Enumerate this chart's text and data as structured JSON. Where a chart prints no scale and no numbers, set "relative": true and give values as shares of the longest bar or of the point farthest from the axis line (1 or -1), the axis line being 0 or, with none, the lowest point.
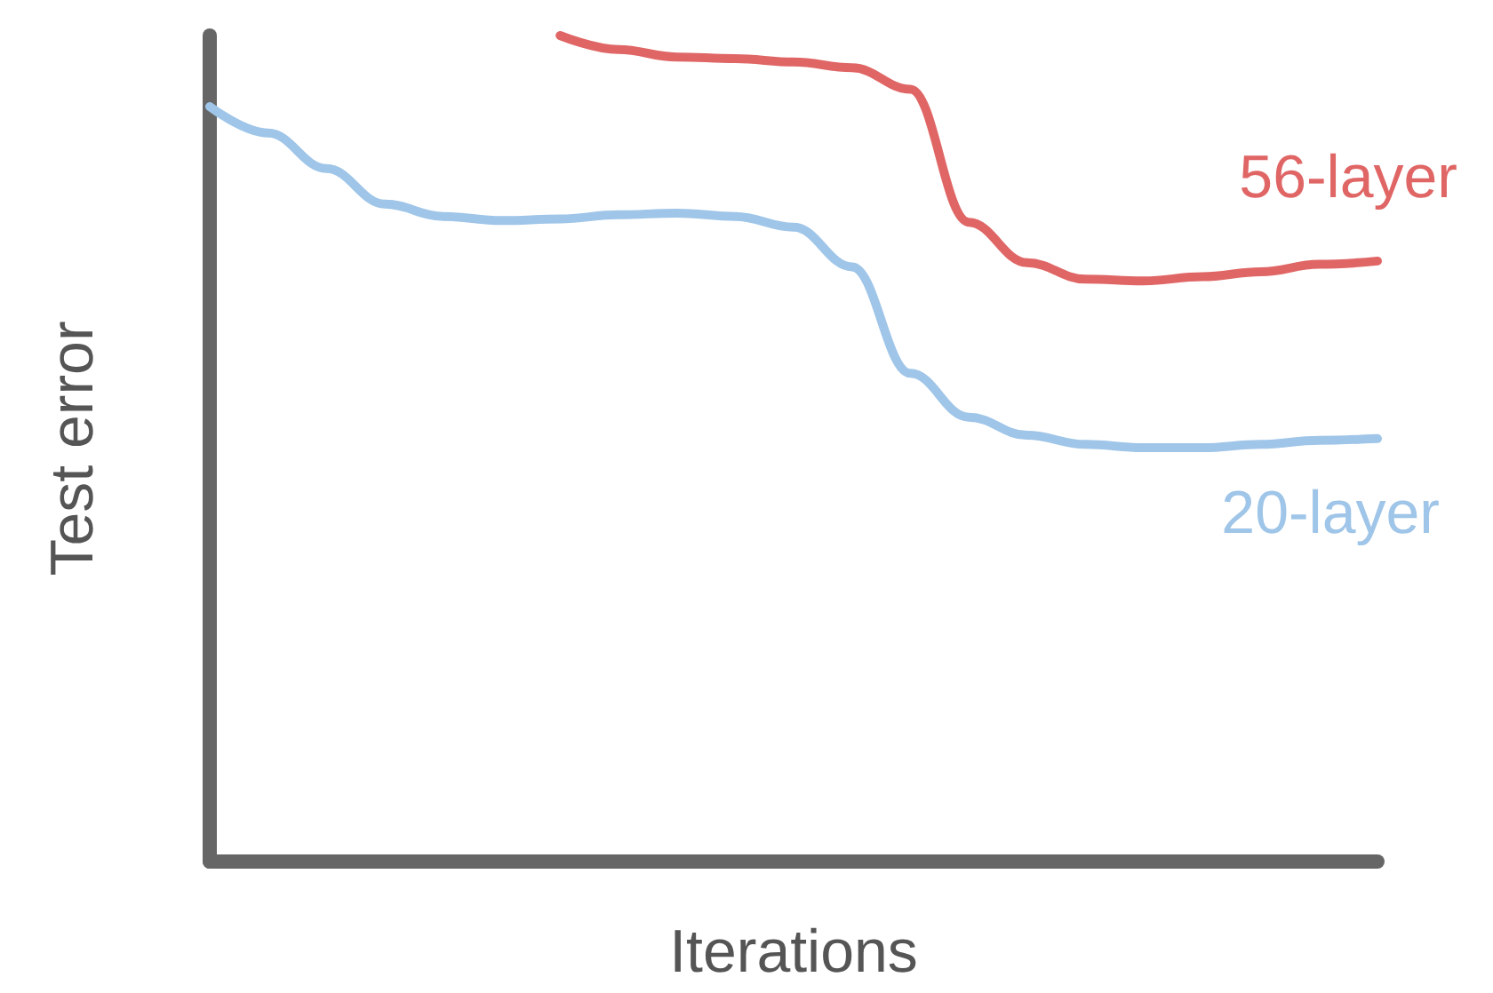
{
  "chart_data": {
    "type": "line",
    "relative": true,
    "xlabel": "Iterations",
    "ylabel": "Test error",
    "marker": "none",
    "categories": [
      null,
      null,
      null,
      null,
      null,
      null,
      null,
      null,
      null,
      null,
      null,
      null,
      null,
      null,
      null,
      null,
      null,
      null,
      null,
      null,
      null
    ],
    "series": [
      {
        "name": "56-layer",
        "color": "#e06666",
        "values": [
          null,
          null,
          null,
          null,
          null,
          null,
          1,
          0.983,
          0.974,
          0.972,
          0.968,
          0.961,
          0.935,
          0.774,
          0.725,
          0.705,
          0.703,
          0.708,
          0.714,
          0.723,
          0.727
        ]
      },
      {
        "name": "20-layer",
        "color": "#9fc5e8",
        "values": [
          0.914,
          0.882,
          0.839,
          0.796,
          0.781,
          0.776,
          0.778,
          0.783,
          0.785,
          0.781,
          0.768,
          0.72,
          0.591,
          0.538,
          0.516,
          0.505,
          0.501,
          0.501,
          0.505,
          0.51,
          0.512
        ]
      }
    ]
  }
}
